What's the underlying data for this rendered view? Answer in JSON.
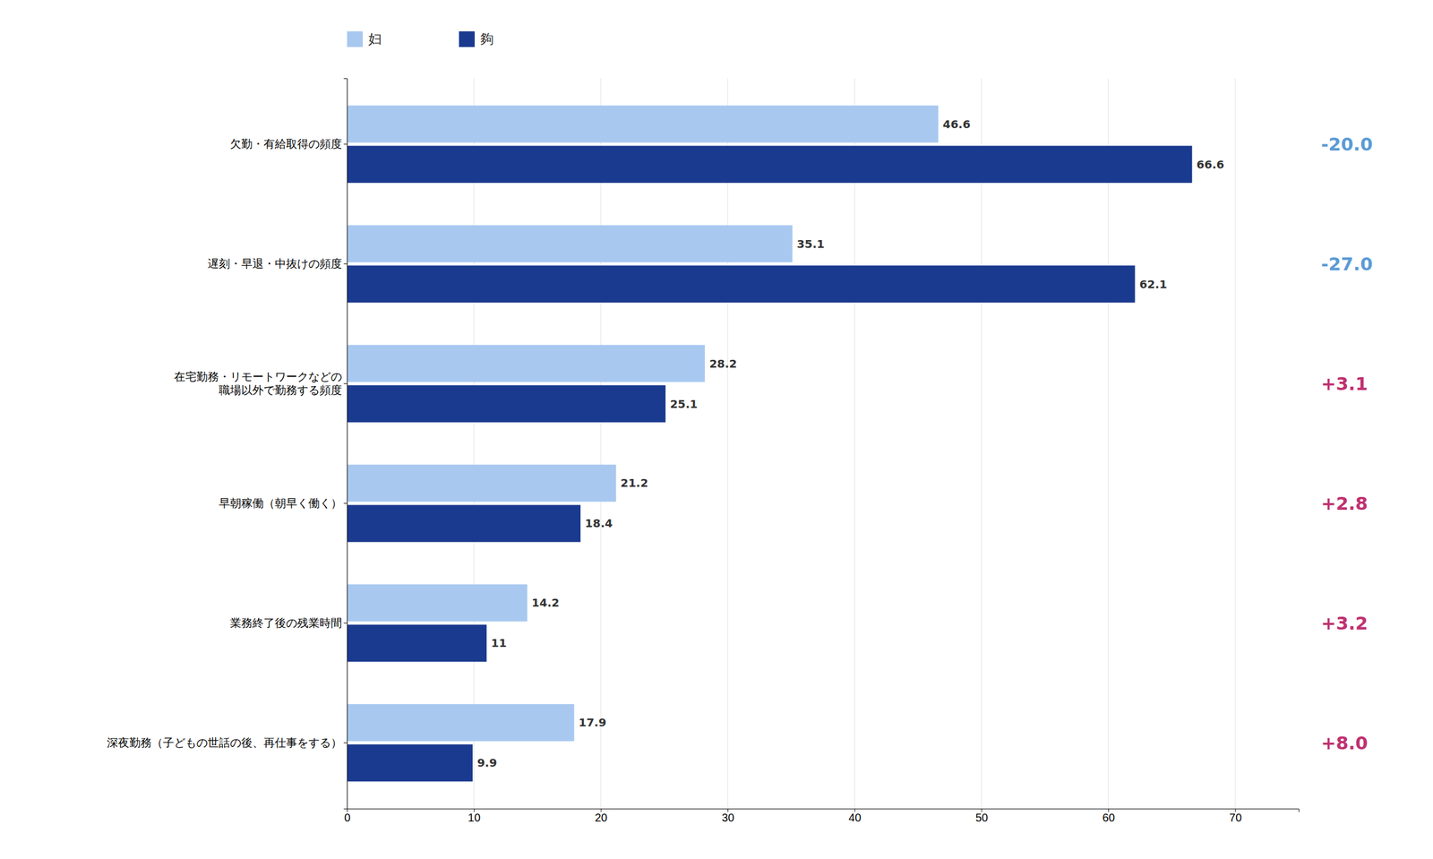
{
  "chart_data": {
    "type": "bar",
    "orientation": "horizontal",
    "categories": [
      "欠勤・有給取得の頻度",
      "遅刻・早退・中抜けの頻度",
      "在宅勤務・リモートワークなどの\n職場以外で勤務する頻度",
      "早朝稼働（朝早く働く）",
      "業務終了後の残業時間",
      "深夜勤務（子どもの世話の後、再仕事をする）"
    ],
    "series": [
      {
        "name": "妇",
        "color": "#a8c8f0",
        "values": [
          46.6,
          35.1,
          28.2,
          21.2,
          14.2,
          17.9
        ]
      },
      {
        "name": "夠",
        "color": "#1a3a8f",
        "values": [
          66.6,
          62.1,
          25.1,
          18.4,
          11.0,
          9.9
        ]
      }
    ],
    "annotations": [
      {
        "text": "-20.0",
        "color": "#5b9bd5"
      },
      {
        "text": "-27.0",
        "color": "#5b9bd5"
      },
      {
        "text": "+3.1",
        "color": "#c03070"
      },
      {
        "text": "+2.8",
        "color": "#c03070"
      },
      {
        "text": "+3.2",
        "color": "#c03070"
      },
      {
        "text": "+8.0",
        "color": "#c03070"
      }
    ],
    "xlim": [
      0,
      75
    ],
    "xticks": [
      0,
      10,
      20,
      30,
      40,
      50,
      60,
      70
    ],
    "grid": true,
    "legend": "top",
    "data_labels": true
  }
}
